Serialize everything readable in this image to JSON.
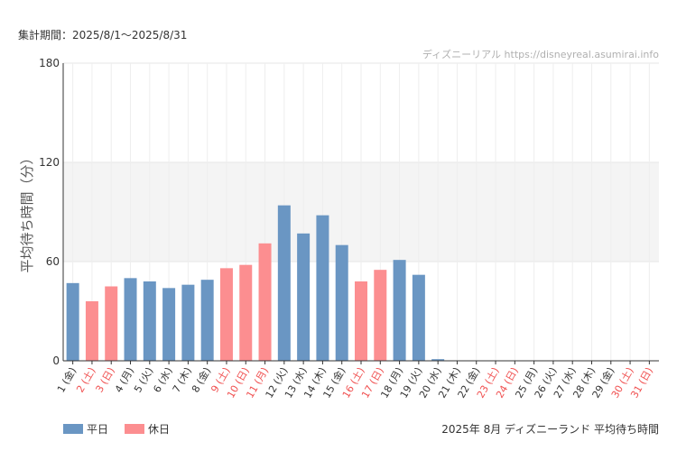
{
  "period_label": "集計期間：2025/8/1〜2025/8/31",
  "watermark": "ディズニーリアル https://disneyreal.asumirai.info",
  "footer_title": "2025年 8月 ディズニーランド 平均待ち時間",
  "legend": [
    {
      "label": "平日",
      "color": "#6a96c3"
    },
    {
      "label": "休日",
      "color": "#fc8e90"
    }
  ],
  "colors": {
    "weekday": "#6a96c3",
    "holiday": "#fc8e90",
    "band": "#f4f4f4",
    "grid": "#e6e6e6",
    "holiday_label": "#f05050"
  },
  "chart_data": {
    "type": "bar",
    "ylabel": "平均待ち時間（分）",
    "ylim": [
      0,
      180
    ],
    "yticks": [
      0,
      60,
      120,
      180
    ],
    "categories": [
      "1 (金)",
      "2 (土)",
      "3 (日)",
      "4 (月)",
      "5 (火)",
      "6 (水)",
      "7 (木)",
      "8 (金)",
      "9 (土)",
      "10 (日)",
      "11 (月)",
      "12 (火)",
      "13 (水)",
      "14 (木)",
      "15 (金)",
      "16 (土)",
      "17 (日)",
      "18 (月)",
      "19 (火)",
      "20 (水)",
      "21 (木)",
      "22 (金)",
      "23 (土)",
      "24 (日)",
      "25 (月)",
      "26 (火)",
      "27 (水)",
      "28 (木)",
      "29 (金)",
      "30 (土)",
      "31 (日)"
    ],
    "holiday": [
      false,
      true,
      true,
      false,
      false,
      false,
      false,
      false,
      true,
      true,
      true,
      false,
      false,
      false,
      false,
      true,
      true,
      false,
      false,
      false,
      false,
      false,
      true,
      true,
      false,
      false,
      false,
      false,
      false,
      true,
      true
    ],
    "values": [
      47,
      36,
      45,
      50,
      48,
      44,
      46,
      49,
      56,
      58,
      71,
      94,
      77,
      88,
      70,
      48,
      55,
      61,
      52,
      1,
      0,
      0,
      0,
      0,
      0,
      0,
      0,
      0,
      0,
      0,
      0
    ]
  }
}
